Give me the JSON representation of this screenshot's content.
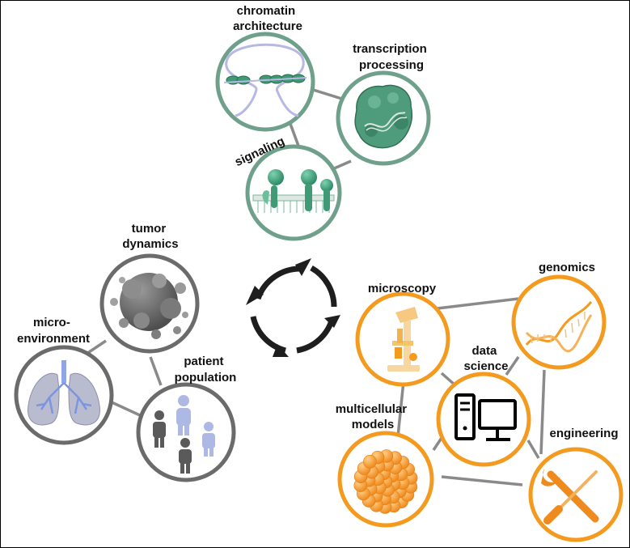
{
  "colors": {
    "teal": "#6fa08b",
    "teal_dark": "#2e8a66",
    "grey": "#6b6b6b",
    "orange": "#f39a1f",
    "edge": "#8a8a8a"
  },
  "groups": {
    "molecular": {
      "nodes": {
        "chromatin": {
          "label": [
            "chromatin",
            "architecture"
          ],
          "icon": "chromatin-icon"
        },
        "transcription": {
          "label": [
            "transcription",
            "processing"
          ],
          "icon": "protein-complex-icon"
        },
        "signaling": {
          "label": [
            "signaling"
          ],
          "icon": "membrane-receptor-icon"
        }
      }
    },
    "clinical": {
      "nodes": {
        "tumor": {
          "label": [
            "tumor",
            "dynamics"
          ],
          "icon": "tumor-icon"
        },
        "microenv": {
          "label": [
            "micro-",
            "environment"
          ],
          "icon": "lungs-icon"
        },
        "patient": {
          "label": [
            "patient",
            "population"
          ],
          "icon": "people-icon"
        }
      }
    },
    "technology": {
      "nodes": {
        "microscopy": {
          "label": [
            "microscopy"
          ],
          "icon": "microscope-icon"
        },
        "genomics": {
          "label": [
            "genomics"
          ],
          "icon": "dna-helix-icon"
        },
        "datascience": {
          "label": [
            "data",
            "science"
          ],
          "icon": "computer-icon"
        },
        "multicellular": {
          "label": [
            "multicellular",
            "models"
          ],
          "icon": "organoid-icon"
        },
        "engineering": {
          "label": [
            "engineering"
          ],
          "icon": "tools-icon"
        }
      }
    }
  },
  "center": {
    "icon": "cycle-arrows-icon"
  }
}
